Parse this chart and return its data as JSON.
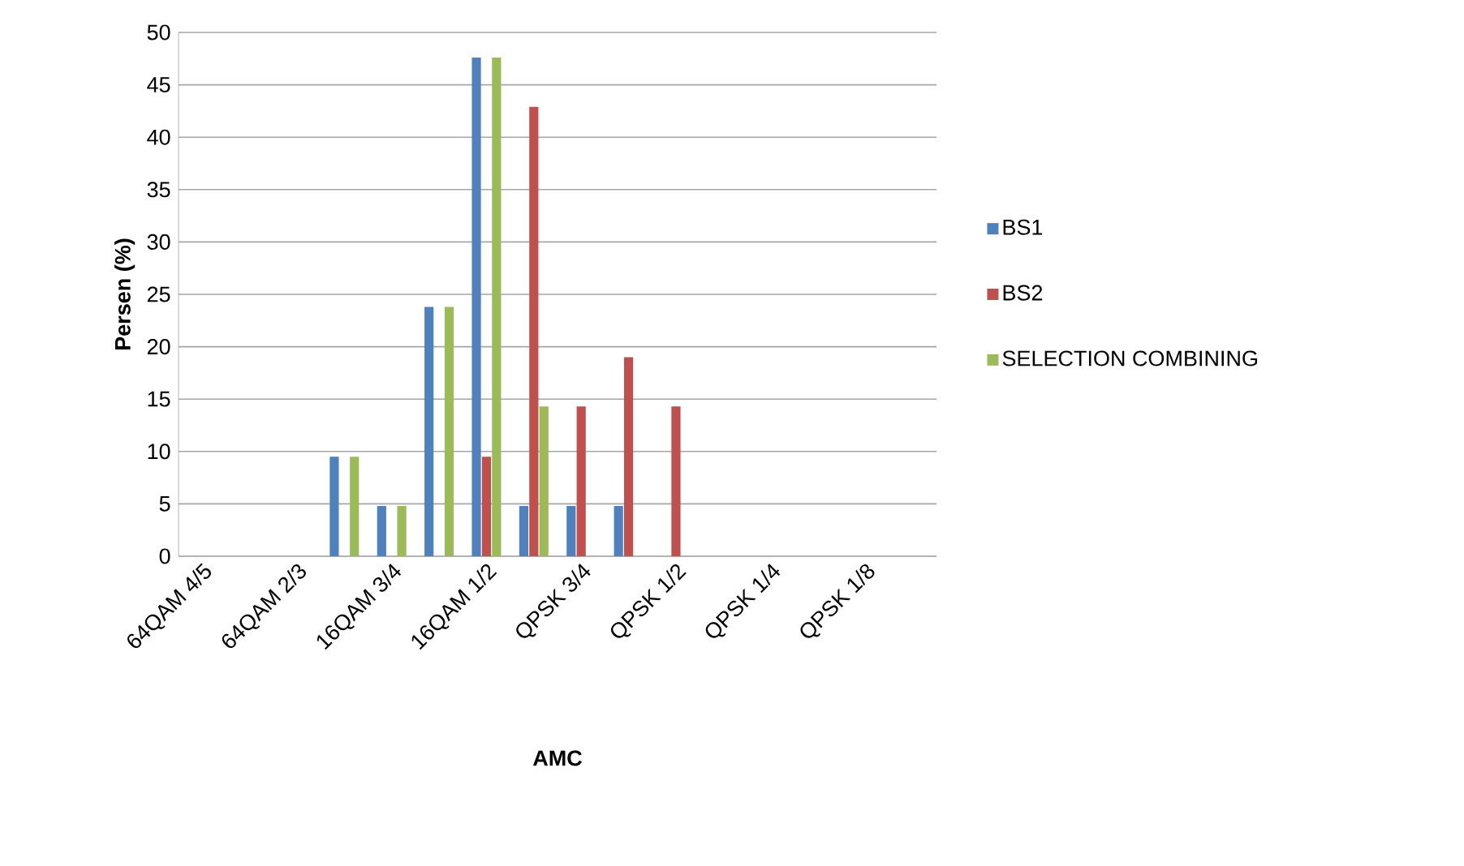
{
  "chart_data": {
    "type": "bar",
    "xlabel": "AMC",
    "ylabel": "Persen (%)",
    "categories": [
      "64QAM 4/5",
      null,
      "64QAM 2/3",
      null,
      "16QAM 3/4",
      null,
      "16QAM 1/2",
      null,
      "QPSK 3/4",
      null,
      "QPSK 1/2",
      null,
      "QPSK 1/4",
      null,
      "QPSK 1/8",
      null
    ],
    "series": [
      {
        "name": "BS1",
        "color": "#4f81bd",
        "values": [
          0,
          0,
          0,
          9.5,
          4.8,
          23.8,
          47.6,
          4.8,
          4.8,
          4.8,
          0,
          0,
          0,
          0,
          0,
          0
        ]
      },
      {
        "name": "BS2",
        "color": "#c0504d",
        "values": [
          0,
          0,
          0,
          0,
          0,
          0,
          9.5,
          42.9,
          14.3,
          19,
          14.3,
          0,
          0,
          0,
          0,
          0
        ]
      },
      {
        "name": "SELECTION COMBINING",
        "color": "#9bbb59",
        "values": [
          0,
          0,
          0,
          9.5,
          4.8,
          23.8,
          47.6,
          14.3,
          0,
          0,
          0,
          0,
          0,
          0,
          0,
          0
        ]
      }
    ],
    "ylim": [
      0,
      50
    ],
    "yticks": [
      0,
      5,
      10,
      15,
      20,
      25,
      30,
      35,
      40,
      45,
      50
    ],
    "grid": "y",
    "legend": "right"
  }
}
